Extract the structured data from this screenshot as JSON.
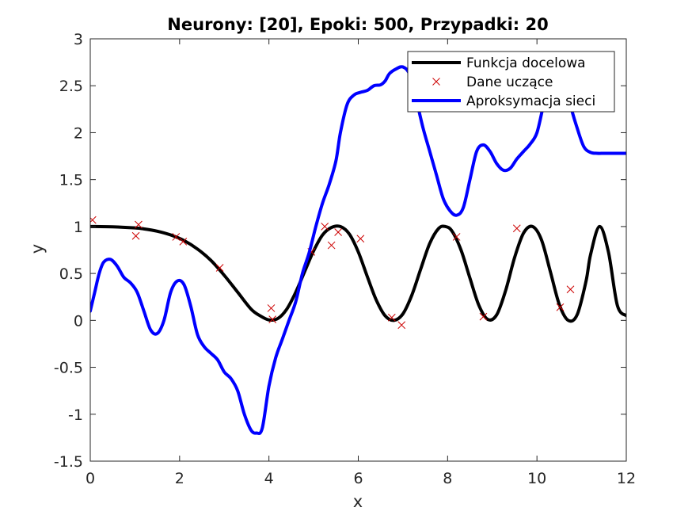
{
  "chart_data": {
    "type": "line",
    "title": "Neurony: [20], Epoki: 500, Przypadki: 20",
    "xlabel": "x",
    "ylabel": "y",
    "xlim": [
      0,
      12
    ],
    "ylim": [
      -1.5,
      3
    ],
    "xticks": [
      0,
      2,
      4,
      6,
      8,
      10,
      12
    ],
    "yticks": [
      -1.5,
      -1,
      -0.5,
      0,
      0.5,
      1,
      1.5,
      2,
      2.5,
      3
    ],
    "xtick_labels": [
      "0",
      "2",
      "4",
      "6",
      "8",
      "10",
      "12"
    ],
    "ytick_labels": [
      "-1.5",
      "-1",
      "-0.5",
      "0",
      "0.5",
      "1",
      "1.5",
      "2",
      "2.5",
      "3"
    ],
    "grid": false,
    "legend_position": "top-right",
    "series": [
      {
        "name": "Funkcja docelowa",
        "kind": "line",
        "color": "#000000",
        "x": [
          0,
          0.5,
          1,
          1.2,
          1.5,
          1.8,
          2.1,
          2.4,
          2.7,
          3.0,
          3.3,
          3.6,
          3.8,
          4.0,
          4.2,
          4.4,
          4.6,
          4.8,
          5.0,
          5.2,
          5.4,
          5.6,
          5.8,
          6.0,
          6.2,
          6.4,
          6.6,
          6.8,
          7.0,
          7.2,
          7.4,
          7.6,
          7.8,
          7.95,
          8.1,
          8.3,
          8.5,
          8.7,
          8.9,
          9.1,
          9.3,
          9.5,
          9.7,
          9.9,
          10.1,
          10.3,
          10.5,
          10.7,
          10.9,
          11.1,
          11.2,
          11.4,
          11.6,
          11.8,
          12.0
        ],
        "y": [
          1.0,
          0.997,
          0.985,
          0.975,
          0.95,
          0.91,
          0.85,
          0.76,
          0.64,
          0.48,
          0.3,
          0.12,
          0.05,
          0.005,
          0.02,
          0.12,
          0.3,
          0.52,
          0.74,
          0.91,
          0.99,
          1.0,
          0.92,
          0.73,
          0.47,
          0.22,
          0.05,
          0.0,
          0.07,
          0.27,
          0.55,
          0.82,
          0.98,
          1.0,
          0.95,
          0.75,
          0.45,
          0.16,
          0.01,
          0.06,
          0.32,
          0.67,
          0.93,
          1.0,
          0.86,
          0.52,
          0.17,
          0.0,
          0.06,
          0.42,
          0.7,
          1.0,
          0.73,
          0.16,
          0.05
        ]
      },
      {
        "name": "Dane uczące",
        "kind": "scatter",
        "marker": "x",
        "color": "#cc0000",
        "x": [
          0.05,
          1.02,
          1.08,
          1.92,
          2.08,
          2.9,
          4.05,
          4.08,
          4.95,
          5.25,
          5.4,
          5.55,
          6.05,
          6.75,
          6.97,
          8.2,
          8.8,
          9.55,
          10.52,
          10.75
        ],
        "y": [
          1.07,
          0.9,
          1.02,
          0.89,
          0.84,
          0.56,
          0.13,
          0.01,
          0.73,
          1.0,
          0.8,
          0.94,
          0.87,
          0.03,
          -0.05,
          0.89,
          0.04,
          0.98,
          0.14,
          0.33
        ]
      },
      {
        "name": "Aproksymacja sieci",
        "kind": "line",
        "color": "#0000ff",
        "x": [
          0,
          0.1,
          0.2,
          0.3,
          0.45,
          0.6,
          0.75,
          0.9,
          1.05,
          1.2,
          1.35,
          1.5,
          1.65,
          1.8,
          1.95,
          2.1,
          2.25,
          2.4,
          2.55,
          2.7,
          2.85,
          3.0,
          3.15,
          3.3,
          3.45,
          3.6,
          3.72,
          3.85,
          4.0,
          4.15,
          4.3,
          4.45,
          4.6,
          4.75,
          4.9,
          5.05,
          5.2,
          5.35,
          5.5,
          5.6,
          5.75,
          5.9,
          6.05,
          6.2,
          6.35,
          6.5,
          6.6,
          6.7,
          6.85,
          7.0,
          7.15,
          7.3,
          7.45,
          7.6,
          7.75,
          7.9,
          8.05,
          8.2,
          8.35,
          8.5,
          8.65,
          8.8,
          8.95,
          9.1,
          9.25,
          9.4,
          9.55,
          9.7,
          9.85,
          10.0,
          10.15,
          10.3,
          10.45,
          10.6,
          10.75,
          10.9,
          11.05,
          11.2,
          11.35,
          11.5,
          11.7,
          12.0
        ],
        "y": [
          0.1,
          0.3,
          0.5,
          0.62,
          0.65,
          0.58,
          0.46,
          0.4,
          0.3,
          0.1,
          -0.1,
          -0.14,
          0.0,
          0.3,
          0.42,
          0.38,
          0.15,
          -0.15,
          -0.28,
          -0.35,
          -0.42,
          -0.55,
          -0.62,
          -0.75,
          -1.0,
          -1.17,
          -1.2,
          -1.15,
          -0.7,
          -0.4,
          -0.2,
          0.0,
          0.2,
          0.5,
          0.72,
          1.0,
          1.25,
          1.45,
          1.7,
          2.0,
          2.3,
          2.4,
          2.43,
          2.45,
          2.5,
          2.51,
          2.55,
          2.63,
          2.68,
          2.7,
          2.62,
          2.35,
          2.05,
          1.8,
          1.55,
          1.3,
          1.17,
          1.12,
          1.2,
          1.5,
          1.8,
          1.87,
          1.8,
          1.67,
          1.6,
          1.62,
          1.72,
          1.8,
          1.88,
          2.0,
          2.3,
          2.55,
          2.7,
          2.69,
          2.3,
          2.05,
          1.85,
          1.79,
          1.78,
          1.78,
          1.78,
          1.78
        ]
      }
    ]
  }
}
